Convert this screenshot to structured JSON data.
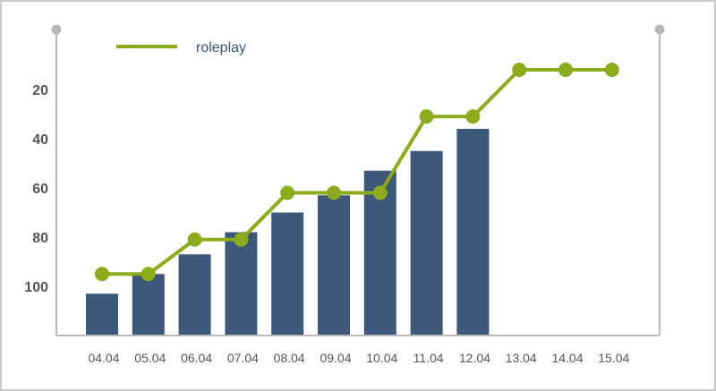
{
  "colors": {
    "bar": "#3d5878",
    "line": "#8bab1d",
    "axis": "#b8b8b8",
    "legend_text": "#3d5878"
  },
  "chart_data": {
    "type": "bar",
    "categories": [
      "04.04",
      "05.04",
      "06.04",
      "07.04",
      "08.04",
      "09.04",
      "10.04",
      "11.04",
      "12.04",
      "13.04",
      "14.04",
      "15.04"
    ],
    "y_ticks": [
      "20",
      "40",
      "60",
      "80",
      "100"
    ],
    "ylim": [
      120,
      8
    ],
    "y_inverted": true,
    "series": [
      {
        "type": "bar",
        "values": [
          103,
          95,
          87,
          78,
          70,
          63,
          53,
          45,
          36,
          null,
          null,
          null
        ]
      },
      {
        "name": "roleplay",
        "type": "line",
        "values": [
          95,
          95,
          81,
          81,
          62,
          62,
          62,
          31,
          31,
          12,
          12,
          12
        ]
      }
    ],
    "legend_position": "top-left",
    "grid": false
  }
}
